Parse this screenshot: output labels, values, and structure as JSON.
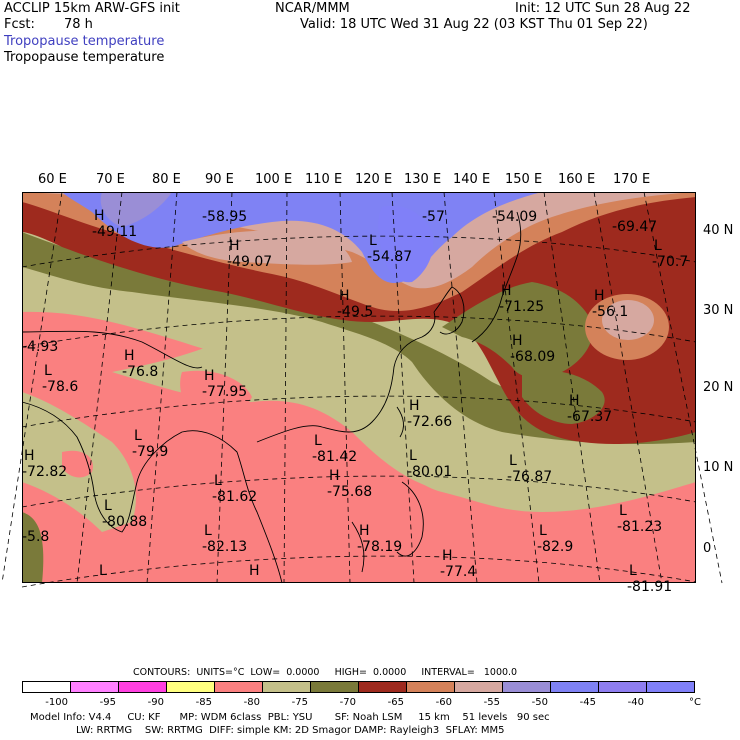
{
  "header": {
    "line1_left": "ACCLIP 15km ARW-GFS init",
    "line1_center": "NCAR/MMM",
    "line1_right": "Init: 12 UTC Sun 28 Aug 22",
    "fcst_label": "Fcst:",
    "fcst_value": "78 h",
    "valid": "Valid: 18 UTC Wed 31 Aug 22 (03 KST Thu 01 Sep 22)",
    "field_blue": "Tropopause temperature",
    "field_black": "Tropopause temperature"
  },
  "colors": {
    "bg": "#ffffff",
    "c_lt100": "#ffffff",
    "c_95": "#ff80ff",
    "c_90": "#ff40e0",
    "c_85": "#ffff80",
    "c_80": "#fa8080",
    "c_75": "#c4c08a",
    "c_70": "#7a7a3a",
    "c_65": "#9e2a1e",
    "c_60": "#d4825a",
    "c_55": "#d6a8a0",
    "c_50": "#9a8ed6",
    "c_45": "#7f82f4",
    "c_40": "#8f7ef0",
    "c_gt40": "#8080f8"
  },
  "longitudes": [
    "60 E",
    "70 E",
    "80 E",
    "90 E",
    "100 E",
    "110 E",
    "120 E",
    "130 E",
    "140 E",
    "150 E",
    "160 E",
    "170 E"
  ],
  "latitudes": [
    "40 N",
    "30 N",
    "20 N",
    "10 N",
    "0"
  ],
  "map_labels": [
    {
      "mark": "H",
      "value": "-49.11"
    },
    {
      "mark": "",
      "value": "-58.95"
    },
    {
      "mark": "",
      "value": "-57"
    },
    {
      "mark": "",
      "value": "-54.09"
    },
    {
      "mark": "",
      "value": "-69.47"
    },
    {
      "mark": "H",
      "value": "-49.07"
    },
    {
      "mark": "L",
      "value": "-54.87"
    },
    {
      "mark": "L",
      "value": "-70.7"
    },
    {
      "mark": "H",
      "value": "-49.5"
    },
    {
      "mark": "H",
      "value": "-71.25"
    },
    {
      "mark": "H",
      "value": "-56.1"
    },
    {
      "mark": "",
      "value": "-4.93"
    },
    {
      "mark": "H",
      "value": "-68.09"
    },
    {
      "mark": "L",
      "value": "-78.6"
    },
    {
      "mark": "H",
      "value": "-76.8"
    },
    {
      "mark": "H",
      "value": "-77.95"
    },
    {
      "mark": "H",
      "value": "-72.66"
    },
    {
      "mark": "H",
      "value": "-67.37"
    },
    {
      "mark": "L",
      "value": "-79.9"
    },
    {
      "mark": "L",
      "value": "-81.42"
    },
    {
      "mark": "H",
      "value": "-72.82"
    },
    {
      "mark": "L",
      "value": "-80.01"
    },
    {
      "mark": "L",
      "value": "-76.87"
    },
    {
      "mark": "L",
      "value": "-81.62"
    },
    {
      "mark": "H",
      "value": "-75.68"
    },
    {
      "mark": "L",
      "value": "-80.88"
    },
    {
      "mark": "L",
      "value": "-81.23"
    },
    {
      "mark": "",
      "value": "-5.8"
    },
    {
      "mark": "L",
      "value": "-82.13"
    },
    {
      "mark": "H",
      "value": "-78.19"
    },
    {
      "mark": "L",
      "value": "-82.9"
    },
    {
      "mark": "H",
      "value": "-77.4"
    },
    {
      "mark": "L",
      "value": ""
    },
    {
      "mark": "H",
      "value": ""
    },
    {
      "mark": "L",
      "value": "-81.91"
    }
  ],
  "contours": {
    "text": "CONTOURS:  UNITS=°C  LOW=  0.0000     HIGH=  0.0000     INTERVAL=   1000.0"
  },
  "colorbar": {
    "ticks": [
      "-100",
      "-95",
      "-90",
      "-85",
      "-80",
      "-75",
      "-70",
      "-65",
      "-60",
      "-55",
      "-50",
      "-45",
      "-40"
    ],
    "unit": "°C"
  },
  "footer": {
    "line1": "Model Info: V4.4     CU: KF      MP: WDM 6class  PBL: YSU       SF: Noah LSM     15 km    51 levels   90 sec",
    "line2": "LW: RRTMG    SW: RRTMG  DIFF: simple KM: 2D Smagor DAMP: Rayleigh3  SFLAY: MM5"
  }
}
